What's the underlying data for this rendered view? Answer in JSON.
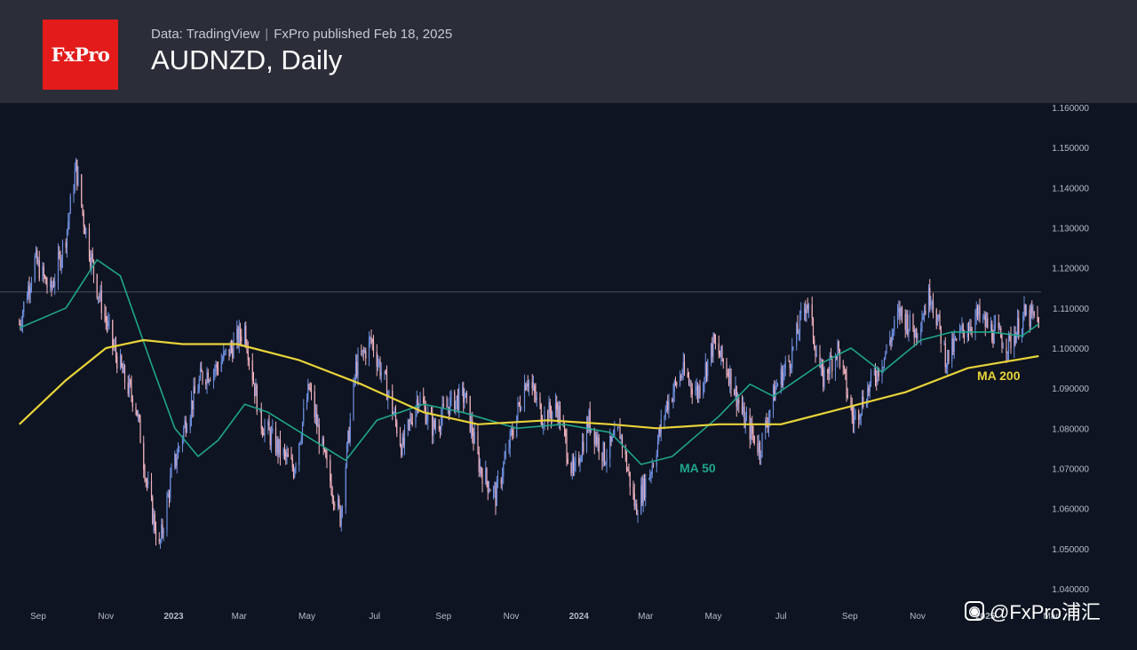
{
  "header": {
    "logo_text": "FxPro",
    "data_source": "Data: TradingView",
    "published": "FxPro published Feb 18, 2025",
    "title": "AUDNZD, Daily"
  },
  "watermark": {
    "icon": "weibo-icon",
    "text": "@FxPro浦汇"
  },
  "colors": {
    "background": "#0e1421",
    "header": "#2b2e39",
    "logo": "#e31b1b",
    "candle_up": "#6e8fe0",
    "candle_down": "#f0b2be",
    "ma50": "#1fa68a",
    "ma200": "#e8d33a",
    "axis_text": "#b9bcc6"
  },
  "chart_data": {
    "type": "candlestick",
    "y_tick_labels": [
      "1.160000",
      "1.150000",
      "1.140000",
      "1.130000",
      "1.120000",
      "1.110000",
      "1.100000",
      "1.090000",
      "1.080000",
      "1.070000",
      "1.060000",
      "1.050000",
      "1.040000"
    ],
    "ylim": [
      1.04,
      1.16
    ],
    "x_tick_labels": [
      "Sep",
      "Nov",
      "2023",
      "Mar",
      "May",
      "Jul",
      "Sep",
      "Nov",
      "2024",
      "Mar",
      "May",
      "Jul",
      "Sep",
      "Nov",
      "2025",
      "Mar"
    ],
    "x_tick_dates": [
      "2022-09",
      "2022-11",
      "2023-01",
      "2023-03",
      "2023-05",
      "2023-07",
      "2023-09",
      "2023-11",
      "2024-01",
      "2024-03",
      "2024-05",
      "2024-07",
      "2024-09",
      "2024-11",
      "2025-01",
      "2025-03"
    ],
    "price_path": [
      {
        "date": "2022-08-15",
        "close": 1.106
      },
      {
        "date": "2022-08-29",
        "close": 1.122
      },
      {
        "date": "2022-09-12",
        "close": 1.114
      },
      {
        "date": "2022-09-26",
        "close": 1.128
      },
      {
        "date": "2022-10-05",
        "close": 1.145
      },
      {
        "date": "2022-10-12",
        "close": 1.132
      },
      {
        "date": "2022-10-24",
        "close": 1.115
      },
      {
        "date": "2022-11-08",
        "close": 1.1
      },
      {
        "date": "2022-11-18",
        "close": 1.092
      },
      {
        "date": "2022-11-28",
        "close": 1.086
      },
      {
        "date": "2022-12-08",
        "close": 1.066
      },
      {
        "date": "2022-12-19",
        "close": 1.05
      },
      {
        "date": "2022-12-30",
        "close": 1.068
      },
      {
        "date": "2023-01-12",
        "close": 1.082
      },
      {
        "date": "2023-01-26",
        "close": 1.093
      },
      {
        "date": "2023-02-08",
        "close": 1.095
      },
      {
        "date": "2023-02-22",
        "close": 1.1
      },
      {
        "date": "2023-03-06",
        "close": 1.105
      },
      {
        "date": "2023-03-20",
        "close": 1.082
      },
      {
        "date": "2023-04-05",
        "close": 1.075
      },
      {
        "date": "2023-04-19",
        "close": 1.07
      },
      {
        "date": "2023-05-03",
        "close": 1.09
      },
      {
        "date": "2023-05-17",
        "close": 1.072
      },
      {
        "date": "2023-05-31",
        "close": 1.058
      },
      {
        "date": "2023-06-14",
        "close": 1.095
      },
      {
        "date": "2023-06-28",
        "close": 1.102
      },
      {
        "date": "2023-07-12",
        "close": 1.09
      },
      {
        "date": "2023-07-26",
        "close": 1.075
      },
      {
        "date": "2023-08-09",
        "close": 1.088
      },
      {
        "date": "2023-08-23",
        "close": 1.08
      },
      {
        "date": "2023-09-06",
        "close": 1.086
      },
      {
        "date": "2023-09-20",
        "close": 1.088
      },
      {
        "date": "2023-10-04",
        "close": 1.07
      },
      {
        "date": "2023-10-18",
        "close": 1.063
      },
      {
        "date": "2023-11-01",
        "close": 1.078
      },
      {
        "date": "2023-11-15",
        "close": 1.093
      },
      {
        "date": "2023-11-29",
        "close": 1.083
      },
      {
        "date": "2023-12-13",
        "close": 1.085
      },
      {
        "date": "2023-12-27",
        "close": 1.068
      },
      {
        "date": "2024-01-10",
        "close": 1.082
      },
      {
        "date": "2024-01-24",
        "close": 1.073
      },
      {
        "date": "2024-02-07",
        "close": 1.079
      },
      {
        "date": "2024-02-21",
        "close": 1.06
      },
      {
        "date": "2024-03-06",
        "close": 1.07
      },
      {
        "date": "2024-03-20",
        "close": 1.086
      },
      {
        "date": "2024-04-03",
        "close": 1.094
      },
      {
        "date": "2024-04-17",
        "close": 1.089
      },
      {
        "date": "2024-05-01",
        "close": 1.101
      },
      {
        "date": "2024-05-15",
        "close": 1.094
      },
      {
        "date": "2024-05-29",
        "close": 1.082
      },
      {
        "date": "2024-06-12",
        "close": 1.075
      },
      {
        "date": "2024-06-26",
        "close": 1.09
      },
      {
        "date": "2024-07-10",
        "close": 1.098
      },
      {
        "date": "2024-07-24",
        "close": 1.112
      },
      {
        "date": "2024-08-07",
        "close": 1.092
      },
      {
        "date": "2024-08-21",
        "close": 1.1
      },
      {
        "date": "2024-09-04",
        "close": 1.082
      },
      {
        "date": "2024-09-18",
        "close": 1.09
      },
      {
        "date": "2024-10-02",
        "close": 1.098
      },
      {
        "date": "2024-10-16",
        "close": 1.109
      },
      {
        "date": "2024-10-30",
        "close": 1.104
      },
      {
        "date": "2024-11-13",
        "close": 1.114
      },
      {
        "date": "2024-11-27",
        "close": 1.097
      },
      {
        "date": "2024-12-11",
        "close": 1.104
      },
      {
        "date": "2024-12-25",
        "close": 1.108
      },
      {
        "date": "2025-01-08",
        "close": 1.104
      },
      {
        "date": "2025-01-22",
        "close": 1.101
      },
      {
        "date": "2025-02-05",
        "close": 1.108
      },
      {
        "date": "2025-02-18",
        "close": 1.107
      }
    ],
    "horizontal_level": 1.114,
    "series": [
      {
        "name": "MA 50",
        "color": "#1fa68a",
        "points": [
          {
            "date": "2022-08-15",
            "value": 1.105
          },
          {
            "date": "2022-09-26",
            "value": 1.11
          },
          {
            "date": "2022-10-24",
            "value": 1.122
          },
          {
            "date": "2022-11-14",
            "value": 1.118
          },
          {
            "date": "2022-12-12",
            "value": 1.096
          },
          {
            "date": "2023-01-02",
            "value": 1.08
          },
          {
            "date": "2023-01-23",
            "value": 1.073
          },
          {
            "date": "2023-02-10",
            "value": 1.077
          },
          {
            "date": "2023-03-06",
            "value": 1.086
          },
          {
            "date": "2023-03-27",
            "value": 1.084
          },
          {
            "date": "2023-05-01",
            "value": 1.078
          },
          {
            "date": "2023-06-05",
            "value": 1.072
          },
          {
            "date": "2023-07-03",
            "value": 1.082
          },
          {
            "date": "2023-08-14",
            "value": 1.086
          },
          {
            "date": "2023-09-18",
            "value": 1.084
          },
          {
            "date": "2023-11-06",
            "value": 1.08
          },
          {
            "date": "2023-12-18",
            "value": 1.081
          },
          {
            "date": "2024-01-29",
            "value": 1.079
          },
          {
            "date": "2024-02-26",
            "value": 1.071
          },
          {
            "date": "2024-03-25",
            "value": 1.073
          },
          {
            "date": "2024-05-06",
            "value": 1.083
          },
          {
            "date": "2024-06-03",
            "value": 1.091
          },
          {
            "date": "2024-06-24",
            "value": 1.088
          },
          {
            "date": "2024-08-05",
            "value": 1.096
          },
          {
            "date": "2024-09-02",
            "value": 1.1
          },
          {
            "date": "2024-09-30",
            "value": 1.094
          },
          {
            "date": "2024-11-04",
            "value": 1.102
          },
          {
            "date": "2024-12-02",
            "value": 1.104
          },
          {
            "date": "2025-01-06",
            "value": 1.104
          },
          {
            "date": "2025-02-03",
            "value": 1.103
          },
          {
            "date": "2025-02-18",
            "value": 1.106
          }
        ]
      },
      {
        "name": "MA 200",
        "color": "#e8d33a",
        "points": [
          {
            "date": "2022-08-15",
            "value": 1.081
          },
          {
            "date": "2022-09-26",
            "value": 1.092
          },
          {
            "date": "2022-11-01",
            "value": 1.1
          },
          {
            "date": "2022-12-05",
            "value": 1.102
          },
          {
            "date": "2023-01-09",
            "value": 1.101
          },
          {
            "date": "2023-02-27",
            "value": 1.101
          },
          {
            "date": "2023-04-24",
            "value": 1.097
          },
          {
            "date": "2023-06-19",
            "value": 1.091
          },
          {
            "date": "2023-08-14",
            "value": 1.084
          },
          {
            "date": "2023-10-02",
            "value": 1.081
          },
          {
            "date": "2023-12-04",
            "value": 1.082
          },
          {
            "date": "2024-01-29",
            "value": 1.081
          },
          {
            "date": "2024-03-11",
            "value": 1.08
          },
          {
            "date": "2024-05-06",
            "value": 1.081
          },
          {
            "date": "2024-07-01",
            "value": 1.081
          },
          {
            "date": "2024-08-26",
            "value": 1.085
          },
          {
            "date": "2024-10-21",
            "value": 1.089
          },
          {
            "date": "2024-12-16",
            "value": 1.095
          },
          {
            "date": "2025-02-18",
            "value": 1.098
          }
        ]
      }
    ],
    "annotations": [
      "MA 50",
      "MA 200"
    ],
    "grid": false
  }
}
